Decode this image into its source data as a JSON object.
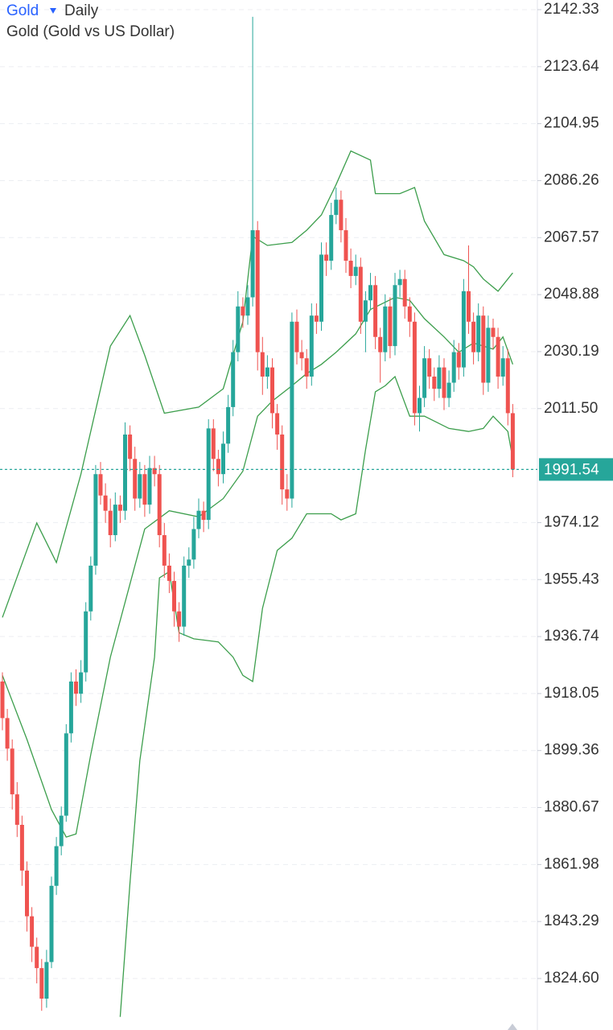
{
  "chart_data": {
    "type": "candlestick",
    "title": "Gold",
    "interval": "Daily",
    "subtitle": "Gold (Gold vs US Dollar)",
    "up_color": "#26a69a",
    "down_color": "#ef5350",
    "grid": true,
    "ylim": [
      1807.71,
      2145.5
    ],
    "yticks": [
      2142.33,
      2123.64,
      2104.95,
      2086.26,
      2067.57,
      2048.88,
      2030.19,
      {
        "value": 2011.5,
        "label": "2011.50"
      },
      1974.12,
      1955.43,
      1936.74,
      1918.05,
      1899.36,
      1880.67,
      1861.98,
      1843.29,
      {
        "value": 1824.6,
        "label": "1824.60"
      }
    ],
    "last_price": 1991.54,
    "candles": [
      [
        1922,
        1925,
        1906,
        1910
      ],
      [
        1910,
        1913,
        1896,
        1900
      ],
      [
        1900,
        1903,
        1880,
        1885
      ],
      [
        1885,
        1889,
        1871,
        1875
      ],
      [
        1875,
        1878,
        1855,
        1860
      ],
      [
        1860,
        1863,
        1840,
        1845
      ],
      [
        1845,
        1848,
        1830,
        1835
      ],
      [
        1835,
        1838,
        1823,
        1828
      ],
      [
        1828,
        1831,
        1814,
        1818
      ],
      [
        1818,
        1834,
        1815,
        1830
      ],
      [
        1830,
        1858,
        1828,
        1855
      ],
      [
        1855,
        1871,
        1852,
        1868
      ],
      [
        1868,
        1881,
        1865,
        1878
      ],
      [
        1878,
        1908,
        1876,
        1905
      ],
      [
        1905,
        1925,
        1902,
        1922
      ],
      [
        1922,
        1926,
        1914,
        1918
      ],
      [
        1918,
        1929,
        1915,
        1925
      ],
      [
        1925,
        1948,
        1922,
        1945
      ],
      [
        1945,
        1963,
        1942,
        1960
      ],
      [
        1960,
        1993,
        1957,
        1990
      ],
      [
        1990,
        1994,
        1980,
        1983
      ],
      [
        1983,
        1987,
        1974,
        1978
      ],
      [
        1978,
        1982,
        1966,
        1970
      ],
      [
        1970,
        1984,
        1968,
        1980
      ],
      [
        1980,
        1983,
        1974,
        1978
      ],
      [
        1978,
        2007,
        1975,
        2003
      ],
      [
        2003,
        2006,
        1991,
        1995
      ],
      [
        1995,
        1999,
        1978,
        1982
      ],
      [
        1982,
        1994,
        1979,
        1990
      ],
      [
        1990,
        1993,
        1976,
        1980
      ],
      [
        1980,
        1996,
        1977,
        1992
      ],
      [
        1992,
        1996,
        1986,
        1990
      ],
      [
        1990,
        1993,
        1966,
        1970
      ],
      [
        1970,
        1974,
        1956,
        1960
      ],
      [
        1960,
        1964,
        1951,
        1955
      ],
      [
        1955,
        1958,
        1940,
        1945
      ],
      [
        1945,
        1948,
        1935,
        1940
      ],
      [
        1940,
        1963,
        1937,
        1960
      ],
      [
        1960,
        1966,
        1956,
        1962
      ],
      [
        1962,
        1976,
        1959,
        1972
      ],
      [
        1972,
        1982,
        1969,
        1978
      ],
      [
        1978,
        1981,
        1971,
        1975
      ],
      [
        1975,
        2008,
        1972,
        2005
      ],
      [
        2005,
        2008,
        1991,
        1995
      ],
      [
        1995,
        1998,
        1986,
        1990
      ],
      [
        1990,
        2004,
        1987,
        2000
      ],
      [
        2000,
        2016,
        1997,
        2012
      ],
      [
        2012,
        2034,
        2009,
        2030
      ],
      [
        2030,
        2050,
        2027,
        2045
      ],
      [
        2045,
        2048,
        2038,
        2042
      ],
      [
        2042,
        2052,
        2039,
        2048
      ],
      [
        2048,
        2140,
        2045,
        2070
      ],
      [
        2070,
        2073,
        2024,
        2030
      ],
      [
        2030,
        2035,
        2016,
        2022
      ],
      [
        2022,
        2029,
        2018,
        2025
      ],
      [
        2025,
        2028,
        2005,
        2010
      ],
      [
        2010,
        2013,
        1998,
        2003
      ],
      [
        2003,
        2006,
        1980,
        1985
      ],
      [
        1985,
        1990,
        1978,
        1982
      ],
      [
        1982,
        2043,
        1979,
        2040
      ],
      [
        2040,
        2044,
        2026,
        2030
      ],
      [
        2030,
        2034,
        2024,
        2028
      ],
      [
        2028,
        2031,
        2018,
        2022
      ],
      [
        2022,
        2046,
        2019,
        2042
      ],
      [
        2042,
        2046,
        2036,
        2040
      ],
      [
        2040,
        2066,
        2037,
        2062
      ],
      [
        2062,
        2066,
        2055,
        2060
      ],
      [
        2060,
        2079,
        2057,
        2075
      ],
      [
        2075,
        2084,
        2072,
        2080
      ],
      [
        2080,
        2083,
        2066,
        2070
      ],
      [
        2070,
        2074,
        2056,
        2060
      ],
      [
        2060,
        2064,
        2051,
        2055
      ],
      [
        2055,
        2062,
        2052,
        2058
      ],
      [
        2058,
        2061,
        2036,
        2040
      ],
      [
        2040,
        2050,
        2030,
        2047
      ],
      [
        2047,
        2056,
        2044,
        2052
      ],
      [
        2052,
        2055,
        2031,
        2035
      ],
      [
        2035,
        2038,
        2020,
        2030
      ],
      [
        2030,
        2049,
        2027,
        2045
      ],
      [
        2045,
        2048,
        2028,
        2032
      ],
      [
        2032,
        2056,
        2029,
        2052
      ],
      [
        2052,
        2057,
        2048,
        2054
      ],
      [
        2054,
        2057,
        2041,
        2045
      ],
      [
        2045,
        2048,
        2035,
        2040
      ],
      [
        2040,
        2043,
        2006,
        2010
      ],
      [
        2010,
        2019,
        2004,
        2015
      ],
      [
        2015,
        2032,
        2012,
        2028
      ],
      [
        2028,
        2031,
        2018,
        2022
      ],
      [
        2022,
        2025,
        2014,
        2018
      ],
      [
        2018,
        2029,
        2015,
        2025
      ],
      [
        2025,
        2028,
        2011,
        2015
      ],
      [
        2015,
        2024,
        2012,
        2020
      ],
      [
        2020,
        2034,
        2017,
        2030
      ],
      [
        2030,
        2033,
        2021,
        2025
      ],
      [
        2025,
        2054,
        2022,
        2050
      ],
      [
        2050,
        2065,
        2036,
        2040
      ],
      [
        2040,
        2043,
        2026,
        2030
      ],
      [
        2030,
        2046,
        2027,
        2042
      ],
      [
        2042,
        2045,
        2016,
        2020
      ],
      [
        2020,
        2042,
        2017,
        2038
      ],
      [
        2038,
        2041,
        2031,
        2035
      ],
      [
        2035,
        2038,
        2018,
        2022
      ],
      [
        2022,
        2032,
        2019,
        2028
      ],
      [
        2028,
        2031,
        2006,
        2010
      ],
      [
        2010,
        2013,
        1989,
        1991.54
      ]
    ],
    "bands": [
      {
        "color": "#3c9e4c",
        "x": [
          0,
          7,
          11,
          16,
          22,
          26,
          29,
          33,
          40,
          45,
          49,
          51,
          54,
          59,
          62,
          65,
          68,
          71,
          75,
          76,
          81,
          84,
          86,
          90,
          94,
          96,
          98,
          101,
          104
        ],
        "values": [
          1943,
          1974,
          1961,
          1990,
          2032,
          2042,
          2029,
          2010,
          2012,
          2018,
          2040,
          2068,
          2065,
          2066,
          2070,
          2075,
          2085,
          2096,
          2093,
          2082,
          2082,
          2084,
          2073,
          2062,
          2060,
          2058,
          2054,
          2050,
          2056
        ]
      },
      {
        "color": "#3c9e4c",
        "x": [
          0,
          5,
          10,
          13,
          15,
          18,
          22,
          29,
          34,
          40,
          45,
          49,
          52,
          55,
          59,
          62,
          65,
          68,
          72,
          75,
          80,
          83,
          86,
          90,
          93,
          96,
          100,
          102,
          104
        ],
        "values": [
          1924,
          1903,
          1880,
          1871,
          1872,
          1898,
          1930,
          1972,
          1978,
          1976,
          1982,
          1991,
          2009,
          2014,
          2019,
          2023,
          2026,
          2030,
          2036,
          2044,
          2048,
          2047,
          2041,
          2035,
          2030,
          2033,
          2031,
          2035,
          2026
        ]
      },
      {
        "color": "#3c9e4c",
        "x": [
          24,
          26,
          28,
          31,
          32,
          34,
          36,
          39,
          44,
          47,
          49,
          51,
          53,
          56,
          59,
          62,
          67,
          69,
          72,
          74,
          76,
          78,
          80,
          83,
          86,
          91,
          95,
          98,
          100,
          103,
          104
        ],
        "values": [
          1812,
          1856,
          1896,
          1930,
          1956,
          1958,
          1938,
          1936,
          1935,
          1930,
          1924,
          1922,
          1946,
          1965,
          1969,
          1977,
          1977,
          1975,
          1977,
          1998,
          2017,
          2019,
          2022,
          2009,
          2009,
          2005,
          2004,
          2005,
          2009,
          2004,
          1995
        ]
      }
    ]
  }
}
